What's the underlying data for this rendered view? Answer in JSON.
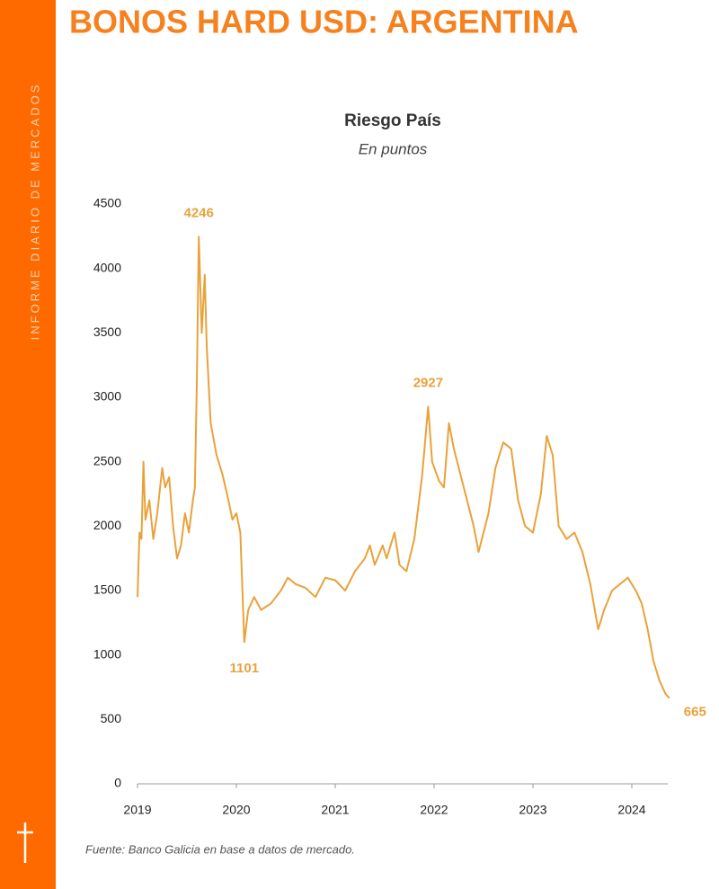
{
  "sidebar": "INFORME DIARIO DE MERCADOS",
  "header_title": "BONOS HARD USD: ARGENTINA",
  "source": "Fuente: Banco Galicia en base a datos de mercado.",
  "chart_data": {
    "type": "line",
    "title": "Riesgo País",
    "subtitle": "En puntos",
    "x": [
      2019.0,
      2019.02,
      2019.04,
      2019.06,
      2019.08,
      2019.12,
      2019.16,
      2019.2,
      2019.25,
      2019.28,
      2019.32,
      2019.36,
      2019.4,
      2019.44,
      2019.48,
      2019.52,
      2019.56,
      2019.58,
      2019.6,
      2019.62,
      2019.65,
      2019.68,
      2019.7,
      2019.74,
      2019.8,
      2019.86,
      2019.92,
      2019.96,
      2020.0,
      2020.04,
      2020.08,
      2020.12,
      2020.18,
      2020.25,
      2020.35,
      2020.45,
      2020.52,
      2020.6,
      2020.7,
      2020.8,
      2020.9,
      2021.0,
      2021.1,
      2021.2,
      2021.3,
      2021.35,
      2021.4,
      2021.48,
      2021.52,
      2021.6,
      2021.65,
      2021.72,
      2021.8,
      2021.88,
      2021.94,
      2021.98,
      2022.05,
      2022.1,
      2022.15,
      2022.2,
      2022.3,
      2022.4,
      2022.45,
      2022.55,
      2022.62,
      2022.7,
      2022.78,
      2022.85,
      2022.92,
      2023.0,
      2023.08,
      2023.14,
      2023.2,
      2023.26,
      2023.34,
      2023.42,
      2023.5,
      2023.58,
      2023.66,
      2023.72,
      2023.8,
      2023.88,
      2023.96,
      2024.04,
      2024.1,
      2024.16,
      2024.22,
      2024.28,
      2024.34,
      2024.38
    ],
    "series": [
      {
        "name": "Riesgo País",
        "color": "#e9a23b",
        "values": [
          1450,
          1950,
          1900,
          2500,
          2050,
          2200,
          1900,
          2100,
          2450,
          2300,
          2380,
          2000,
          1750,
          1850,
          2100,
          1950,
          2200,
          2300,
          3100,
          4246,
          3500,
          3950,
          3400,
          2800,
          2550,
          2400,
          2200,
          2050,
          2100,
          1950,
          1101,
          1350,
          1450,
          1350,
          1400,
          1500,
          1600,
          1550,
          1520,
          1450,
          1600,
          1580,
          1500,
          1650,
          1750,
          1850,
          1700,
          1850,
          1750,
          1950,
          1700,
          1650,
          1900,
          2400,
          2927,
          2500,
          2350,
          2300,
          2800,
          2600,
          2300,
          2000,
          1800,
          2100,
          2450,
          2650,
          2600,
          2200,
          2000,
          1950,
          2250,
          2700,
          2550,
          2000,
          1900,
          1950,
          1800,
          1550,
          1200,
          1350,
          1500,
          1550,
          1600,
          1500,
          1400,
          1200,
          950,
          800,
          700,
          665
        ]
      }
    ],
    "annotations": [
      {
        "x": 2019.62,
        "y": 4246,
        "position": "above"
      },
      {
        "x": 2021.94,
        "y": 2927,
        "position": "above"
      },
      {
        "x": 2020.08,
        "y": 1101,
        "position": "below"
      },
      {
        "x": 2024.38,
        "y": 665,
        "position": "right"
      }
    ],
    "xlim": [
      2019,
      2024.5
    ],
    "xticks": [
      2019,
      2020,
      2021,
      2022,
      2023,
      2024
    ],
    "ylim": [
      0,
      4500
    ],
    "yticks": [
      0,
      500,
      1000,
      1500,
      2000,
      2500,
      3000,
      3500,
      4000,
      4500
    ],
    "grid": false
  }
}
